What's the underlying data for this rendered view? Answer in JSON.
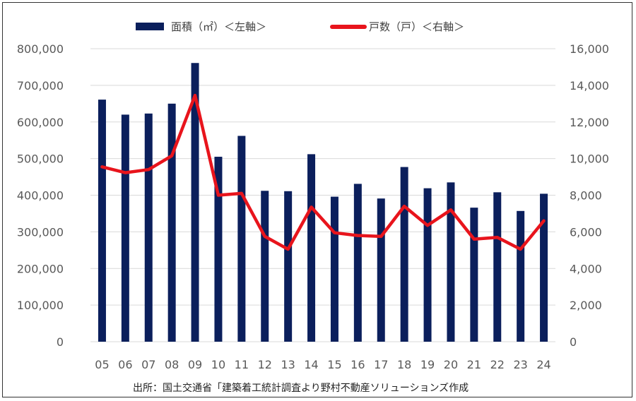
{
  "chart_data": {
    "type": "bar+line",
    "categories": [
      "05",
      "06",
      "07",
      "08",
      "09",
      "10",
      "11",
      "12",
      "13",
      "14",
      "15",
      "16",
      "17",
      "18",
      "19",
      "20",
      "21",
      "22",
      "23",
      "24"
    ],
    "series": [
      {
        "name": "面積（㎡）＜左軸＞",
        "kind": "bar",
        "axis": "left",
        "color": "#0b1f5c",
        "values": [
          661000,
          620000,
          623000,
          650000,
          761000,
          505000,
          562000,
          412000,
          411000,
          512000,
          396000,
          431000,
          391000,
          477000,
          419000,
          435000,
          366000,
          408000,
          357000,
          404000
        ]
      },
      {
        "name": "戸数（戸）＜右軸＞",
        "kind": "line",
        "axis": "right",
        "color": "#e8141c",
        "values": [
          9550,
          9230,
          9400,
          10150,
          13450,
          8000,
          8100,
          5750,
          5050,
          7350,
          5950,
          5800,
          5750,
          7400,
          6350,
          7200,
          5600,
          5700,
          5050,
          6600
        ]
      }
    ],
    "left_axis": {
      "min": 0,
      "max": 800000,
      "ticks": [
        0,
        100000,
        200000,
        300000,
        400000,
        500000,
        600000,
        700000,
        800000
      ],
      "tick_labels": [
        "0",
        "100,000",
        "200,000",
        "300,000",
        "400,000",
        "500,000",
        "600,000",
        "700,000",
        "800,000"
      ]
    },
    "right_axis": {
      "min": 0,
      "max": 16000,
      "ticks": [
        0,
        2000,
        4000,
        6000,
        8000,
        10000,
        12000,
        14000,
        16000
      ],
      "tick_labels": [
        "0",
        "2,000",
        "4,000",
        "6,000",
        "8,000",
        "10,000",
        "12,000",
        "14,000",
        "16,000"
      ]
    },
    "grid": "horizontal",
    "legend": "top-center"
  },
  "source_note": "出所：国土交通省「建築着工統計調査より野村不動産ソリューションズ作成"
}
